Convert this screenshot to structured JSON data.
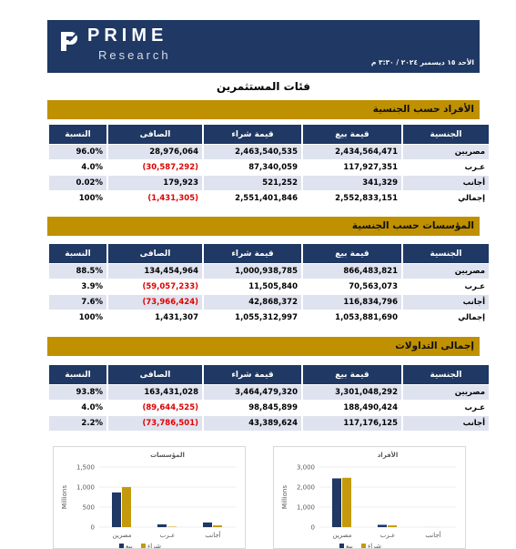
{
  "header": {
    "brand": "PRIME",
    "subbrand": "Research",
    "date": "الأحد ١٥ ديسمبر ٢٠٢٤ / ٣:٣٠ م"
  },
  "title": "فئات المستثمرين",
  "sections": [
    {
      "title": "الأفراد حسب الجنسية",
      "columns": [
        "الجنسية",
        "قيمة بيع",
        "قيمة شراء",
        "الصافى",
        "النسبة"
      ],
      "rows": [
        [
          "مصريين",
          "2,434,564,471",
          "2,463,540,535",
          "28,976,064",
          "96.0%"
        ],
        [
          "عـرب",
          "117,927,351",
          "87,340,059",
          "(30,587,292)",
          "4.0%"
        ],
        [
          "أجانب",
          "341,329",
          "521,252",
          "179,923",
          "0.02%"
        ],
        [
          "إجمالي",
          "2,552,833,151",
          "2,551,401,846",
          "(1,431,305)",
          "100%"
        ]
      ]
    },
    {
      "title": "المؤسسات حسب الجنسية",
      "columns": [
        "الجنسية",
        "قيمة بيع",
        "قيمة شراء",
        "الصافى",
        "النسبة"
      ],
      "rows": [
        [
          "مصريين",
          "866,483,821",
          "1,000,938,785",
          "134,454,964",
          "88.5%"
        ],
        [
          "عـرب",
          "70,563,073",
          "11,505,840",
          "(59,057,233)",
          "3.9%"
        ],
        [
          "أجانب",
          "116,834,796",
          "42,868,372",
          "(73,966,424)",
          "7.6%"
        ],
        [
          "إجمالي",
          "1,053,881,690",
          "1,055,312,997",
          "1,431,307",
          "100%"
        ]
      ]
    },
    {
      "title": "إجمالى التداولات",
      "columns": [
        "الجنسية",
        "قيمة بيع",
        "قيمة شراء",
        "الصافى",
        "النسبة"
      ],
      "rows": [
        [
          "مصريين",
          "3,301,048,292",
          "3,464,479,320",
          "163,431,028",
          "93.8%"
        ],
        [
          "عـرب",
          "188,490,424",
          "98,845,899",
          "(89,644,525)",
          "4.0%"
        ],
        [
          "أجانب",
          "117,176,125",
          "43,389,624",
          "(73,786,501)",
          "2.2%"
        ]
      ]
    }
  ],
  "chart_data": [
    {
      "type": "bar",
      "title": "المؤسسات",
      "y_label": "Millions",
      "categories": [
        "مصرين",
        "عـرب",
        "أجانب"
      ],
      "series": [
        {
          "name": "بيع",
          "color": "#1f3864",
          "values": [
            866.48,
            70.56,
            116.83
          ]
        },
        {
          "name": "شراء",
          "color": "#c49a0c",
          "values": [
            1000.94,
            11.51,
            42.87
          ]
        }
      ],
      "ylim": [
        0,
        1500
      ],
      "yticks": [
        0,
        500,
        {
          "value": 1000,
          "label": "1,000"
        },
        {
          "value": 1500,
          "label": "1,500"
        }
      ],
      "grid": true
    },
    {
      "type": "bar",
      "title": "الأفراد",
      "y_label": "Millions",
      "categories": [
        "مصرين",
        "عـرب",
        "أجانب"
      ],
      "series": [
        {
          "name": "بيع",
          "color": "#1f3864",
          "values": [
            2434.56,
            117.93,
            0.34
          ]
        },
        {
          "name": "شراء",
          "color": "#c49a0c",
          "values": [
            2463.54,
            87.34,
            0.52
          ]
        }
      ],
      "ylim": [
        0,
        3000
      ],
      "yticks": [
        0,
        {
          "value": 1000,
          "label": "1,000"
        },
        {
          "value": 2000,
          "label": "2,000"
        },
        {
          "value": 3000,
          "label": "3,000"
        }
      ],
      "grid": true
    }
  ]
}
